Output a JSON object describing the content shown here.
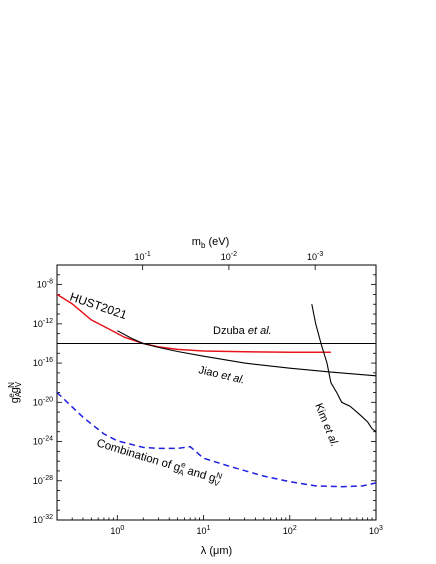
{
  "chart_data": {
    "type": "line",
    "title": "",
    "xlabel": "λ (μm)",
    "ylabel": "g_A^e g_V^N",
    "top_axis_label": "m_b (eV)",
    "xscale": "log",
    "yscale": "log",
    "xlim": [
      0.2,
      1000
    ],
    "ylim": [
      1e-32,
      1e-06
    ],
    "grid": false,
    "x_ticks": [
      {
        "value": 1,
        "label": "10^0"
      },
      {
        "value": 10,
        "label": "10^1"
      },
      {
        "value": 100,
        "label": "10^2"
      },
      {
        "value": 1000,
        "label": "10^3"
      }
    ],
    "y_ticks": [
      {
        "value": 1e-08,
        "label": "10^-8"
      },
      {
        "value": 1e-12,
        "label": "10^-12"
      },
      {
        "value": 1e-16,
        "label": "10^-16"
      },
      {
        "value": 1e-20,
        "label": "10^-20"
      },
      {
        "value": 1e-24,
        "label": "10^-24"
      },
      {
        "value": 1e-28,
        "label": "10^-28"
      },
      {
        "value": 1e-32,
        "label": "10^-32"
      }
    ],
    "top_ticks": [
      {
        "value": 0.1,
        "lambda": 1.97,
        "label": "10^-1"
      },
      {
        "value": 0.01,
        "lambda": 19.7,
        "label": "10^-2"
      },
      {
        "value": 0.001,
        "lambda": 197,
        "label": "10^-3"
      }
    ],
    "series": [
      {
        "name": "HUST2021",
        "color": "#e8141b",
        "dash": "solid",
        "label_text": "HUST2021",
        "x": [
          0.2,
          0.3,
          0.5,
          0.8,
          1.2,
          2,
          3,
          5,
          10,
          30,
          100,
          300
        ],
        "y": [
          1e-09,
          1.1e-10,
          2.5e-12,
          3e-13,
          4.5e-14,
          1e-14,
          4.5e-15,
          2.5e-15,
          1.7e-15,
          1.4e-15,
          1.3e-15,
          1.3e-15
        ]
      },
      {
        "name": "Dzuba et al.",
        "color": "#000000",
        "dash": "solid",
        "label_text": "Dzuba",
        "label_italic": "et al.",
        "x": [
          0.2,
          1000
        ],
        "y": [
          1e-14,
          1e-14
        ]
      },
      {
        "name": "Jiao et al.",
        "color": "#000000",
        "dash": "solid",
        "label_text": "Jiao",
        "label_italic": "et al.",
        "x": [
          1,
          1.5,
          2,
          3,
          5,
          10,
          30,
          100,
          300,
          1000
        ],
        "y": [
          2e-13,
          3e-14,
          1e-14,
          4e-15,
          1.5e-15,
          5e-16,
          1e-16,
          3e-17,
          1.2e-17,
          5e-18
        ]
      },
      {
        "name": "Kim et al.",
        "color": "#000000",
        "dash": "solid",
        "label_text": "Kim",
        "label_italic": "et al.",
        "x": [
          180,
          200,
          230,
          270,
          300,
          350,
          400,
          500,
          600,
          700,
          800,
          900,
          1000
        ],
        "y": [
          1e-10,
          1e-12,
          1e-14,
          1e-16,
          1e-18,
          1e-19,
          1e-20,
          4e-21,
          1e-21,
          3e-22,
          1e-22,
          2e-23,
          1e-23
        ]
      },
      {
        "name": "Combination of g_A^e and g_V^N",
        "color": "#1f1fe0",
        "dash": "dashed",
        "label_text": "Combination of",
        "label_mid": "and",
        "x": [
          0.2,
          0.4,
          0.7,
          1,
          2,
          3,
          5,
          7,
          10,
          20,
          50,
          100,
          200,
          400,
          700,
          1000
        ],
        "y": [
          1e-19,
          3e-22,
          6e-24,
          1.2e-24,
          2.5e-25,
          2e-25,
          2e-25,
          3e-25,
          2e-26,
          3e-27,
          3e-28,
          8e-29,
          3e-29,
          2.5e-29,
          3e-29,
          6e-29
        ]
      }
    ]
  }
}
